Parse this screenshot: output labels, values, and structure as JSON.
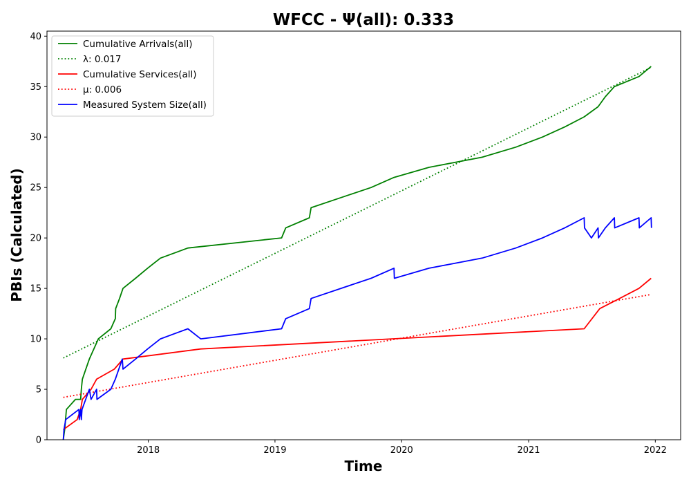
{
  "chart_data": {
    "type": "line",
    "title": "WFCC -  Ψ(all): 0.333",
    "xlabel": "Time",
    "ylabel": "PBIs (Calculated)",
    "xlim": [
      "2017-03-15",
      "2022-03-15"
    ],
    "ylim": [
      0,
      40.5
    ],
    "xticks": [
      "2018",
      "2019",
      "2020",
      "2021",
      "2022"
    ],
    "yticks": [
      0,
      5,
      10,
      15,
      20,
      25,
      30,
      35,
      40
    ],
    "grid": false,
    "legend_position": "top-left",
    "series": [
      {
        "name": "Cumulative Arrivals(all)",
        "color": "#008000",
        "style": "solid",
        "x": [
          "2017-05-01",
          "2017-05-05",
          "2017-05-10",
          "2017-06-05",
          "2017-06-20",
          "2017-06-22",
          "2017-06-25",
          "2017-07-05",
          "2017-07-15",
          "2017-07-28",
          "2017-08-10",
          "2017-09-15",
          "2017-09-28",
          "2017-09-29",
          "2017-10-10",
          "2017-10-20",
          "2017-11-25",
          "2017-12-30",
          "2018-02-05",
          "2018-04-25",
          "2019-01-20",
          "2019-02-01",
          "2019-04-10",
          "2019-04-15",
          "2019-07-10",
          "2019-10-05",
          "2019-12-10",
          "2020-03-20",
          "2020-08-20",
          "2020-11-25",
          "2021-02-10",
          "2021-04-15",
          "2021-06-10",
          "2021-07-20",
          "2021-08-10",
          "2021-09-05",
          "2021-11-15",
          "2021-12-20"
        ],
        "values": [
          0,
          1,
          3,
          4,
          4,
          5,
          6,
          7,
          8,
          9,
          10,
          11,
          12,
          13,
          14,
          15,
          16,
          17,
          18,
          19,
          20,
          21,
          22,
          23,
          24,
          25,
          26,
          27,
          28,
          29,
          30,
          31,
          32,
          33,
          34,
          35,
          36,
          37
        ]
      },
      {
        "name": "λ: 0.017",
        "color": "#008000",
        "style": "dotted",
        "x": [
          "2017-05-01",
          "2021-12-20"
        ],
        "values": [
          8.1,
          36.9
        ]
      },
      {
        "name": "Cumulative Services(all)",
        "color": "#ff0000",
        "style": "solid",
        "x": [
          "2017-05-01",
          "2017-06-10",
          "2017-06-20",
          "2017-06-25",
          "2017-07-20",
          "2017-08-05",
          "2017-09-25",
          "2017-10-20",
          "2018-06-01",
          "2021-06-10",
          "2021-07-25",
          "2021-09-20",
          "2021-11-15",
          "2021-12-20"
        ],
        "values": [
          1,
          2,
          3,
          4,
          5,
          6,
          7,
          8,
          9,
          11,
          13,
          14,
          15,
          16
        ]
      },
      {
        "name": "μ: 0.006",
        "color": "#ff0000",
        "style": "dotted",
        "x": [
          "2017-05-01",
          "2021-12-20"
        ],
        "values": [
          4.2,
          14.4
        ]
      },
      {
        "name": "Measured System Size(all)",
        "color": "#0000ff",
        "style": "solid",
        "x": [
          "2017-05-01",
          "2017-05-03",
          "2017-05-08",
          "2017-06-15",
          "2017-06-16",
          "2017-06-20",
          "2017-06-22",
          "2017-06-24",
          "2017-07-15",
          "2017-07-20",
          "2017-08-05",
          "2017-08-06",
          "2017-09-15",
          "2017-09-28",
          "2017-10-18",
          "2017-10-20",
          "2017-11-25",
          "2017-12-30",
          "2018-02-05",
          "2018-04-25",
          "2018-06-01",
          "2019-01-20",
          "2019-02-01",
          "2019-04-10",
          "2019-04-15",
          "2019-07-10",
          "2019-10-05",
          "2019-12-10",
          "2019-12-11",
          "2020-03-20",
          "2020-08-20",
          "2020-11-25",
          "2021-02-10",
          "2021-04-15",
          "2021-06-10",
          "2021-06-11",
          "2021-07-01",
          "2021-07-20",
          "2021-07-21",
          "2021-08-10",
          "2021-09-05",
          "2021-09-06",
          "2021-11-15",
          "2021-11-16",
          "2021-12-20",
          "2021-12-21"
        ],
        "values": [
          0,
          1,
          2,
          3,
          2,
          3,
          2,
          3,
          5,
          4,
          5,
          4,
          5,
          6,
          8,
          7,
          8,
          9,
          10,
          11,
          10,
          11,
          12,
          13,
          14,
          15,
          16,
          17,
          16,
          17,
          18,
          19,
          20,
          21,
          22,
          21,
          20,
          21,
          20,
          21,
          22,
          21,
          22,
          21,
          22,
          21
        ]
      }
    ]
  }
}
